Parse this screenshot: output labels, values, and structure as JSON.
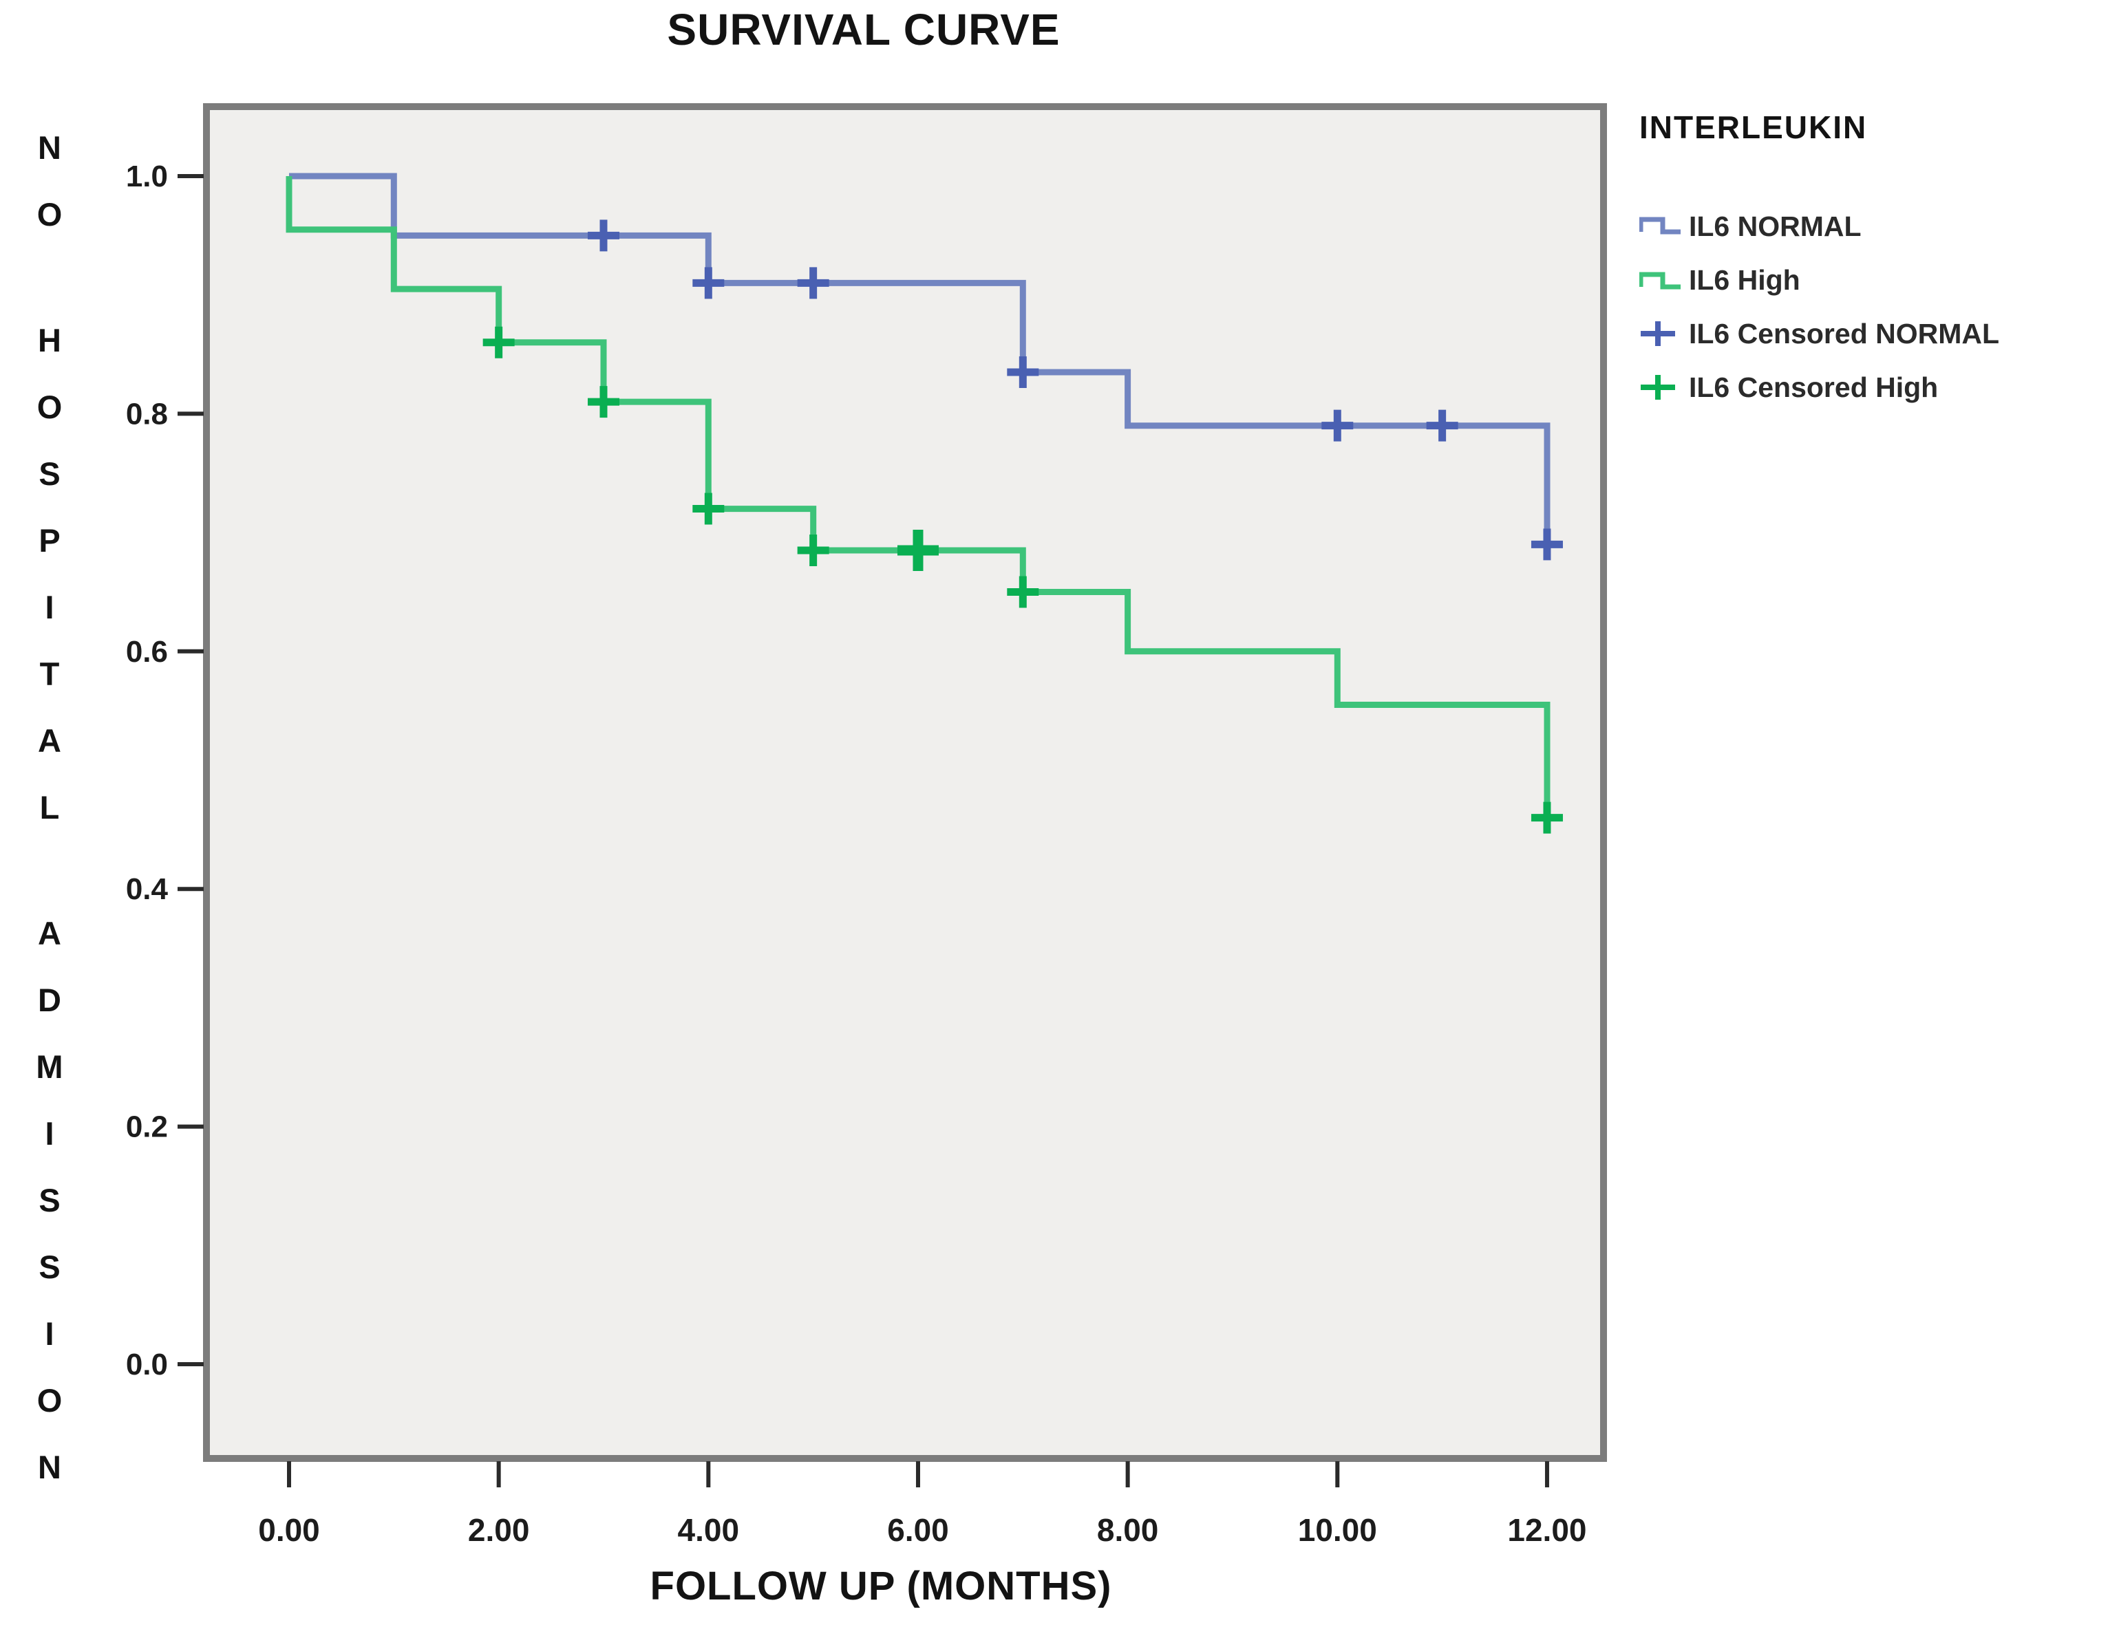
{
  "figure": {
    "title": "SURVIVAL CURVE"
  },
  "chart_data": {
    "type": "line",
    "subtype": "kaplan-meier-step",
    "title": "SURVIVAL CURVE",
    "xlabel": "FOLLOW UP (MONTHS)",
    "ylabel": "NO HOSPITAL ADMISSION",
    "x_ticks": [
      0,
      2,
      4,
      6,
      8,
      10,
      12
    ],
    "x_tick_labels": [
      "0.00",
      "2.00",
      "4.00",
      "6.00",
      "8.00",
      "10.00",
      "12.00"
    ],
    "y_ticks": [
      1.0,
      0.8,
      0.6,
      0.4,
      0.2,
      0.0
    ],
    "y_tick_labels": [
      "1.0",
      "0.8",
      "0.6",
      "0.4",
      "0.2",
      "0.0"
    ],
    "xlim": [
      -0.78,
      12.55
    ],
    "ylim": [
      -0.08,
      1.06
    ],
    "grid": false,
    "legend_position": "right",
    "legend_title": "INTERLEUKIN",
    "background_color": "#f0efed",
    "frame_color": "#7c7c7c",
    "tick_color": "#2a2a2a",
    "series": [
      {
        "name": "IL6 NORMAL",
        "color": "#7285c1",
        "censor_color": "#4a60b2",
        "steps": [
          [
            0,
            1.0
          ],
          [
            1,
            1.0
          ],
          [
            1,
            0.95
          ],
          [
            4,
            0.95
          ],
          [
            4,
            0.91
          ],
          [
            7,
            0.91
          ],
          [
            7,
            0.835
          ],
          [
            8,
            0.835
          ],
          [
            8,
            0.79
          ],
          [
            12,
            0.79
          ],
          [
            12,
            0.69
          ]
        ],
        "censored": [
          {
            "x": 3,
            "y": 0.95
          },
          {
            "x": 4,
            "y": 0.91
          },
          {
            "x": 5,
            "y": 0.91
          },
          {
            "x": 7,
            "y": 0.835
          },
          {
            "x": 10,
            "y": 0.79
          },
          {
            "x": 11,
            "y": 0.79
          },
          {
            "x": 12,
            "y": 0.69
          }
        ]
      },
      {
        "name": "IL6 High",
        "color": "#3ec37a",
        "censor_color": "#0aaf52",
        "steps": [
          [
            0,
            1.0
          ],
          [
            0,
            0.955
          ],
          [
            1,
            0.955
          ],
          [
            1,
            0.905
          ],
          [
            2,
            0.905
          ],
          [
            2,
            0.86
          ],
          [
            3,
            0.86
          ],
          [
            3,
            0.81
          ],
          [
            4,
            0.81
          ],
          [
            4,
            0.72
          ],
          [
            5,
            0.72
          ],
          [
            5,
            0.685
          ],
          [
            7,
            0.685
          ],
          [
            7,
            0.65
          ],
          [
            8,
            0.65
          ],
          [
            8,
            0.6
          ],
          [
            10,
            0.6
          ],
          [
            10,
            0.555
          ],
          [
            12,
            0.555
          ],
          [
            12,
            0.46
          ]
        ],
        "censored": [
          {
            "x": 2,
            "y": 0.86
          },
          {
            "x": 3,
            "y": 0.81
          },
          {
            "x": 4,
            "y": 0.72
          },
          {
            "x": 5,
            "y": 0.685
          },
          {
            "x": 6,
            "y": 0.685,
            "size": "large"
          },
          {
            "x": 7,
            "y": 0.65
          },
          {
            "x": 12,
            "y": 0.46
          }
        ]
      }
    ],
    "legend": [
      {
        "label": "IL6 NORMAL",
        "symbol": "step",
        "series": 0
      },
      {
        "label": "IL6 High",
        "symbol": "step",
        "series": 1
      },
      {
        "label": "IL6 Censored NORMAL",
        "symbol": "censor",
        "series": 0
      },
      {
        "label": "IL6 Censored High",
        "symbol": "censor",
        "series": 1
      }
    ]
  }
}
